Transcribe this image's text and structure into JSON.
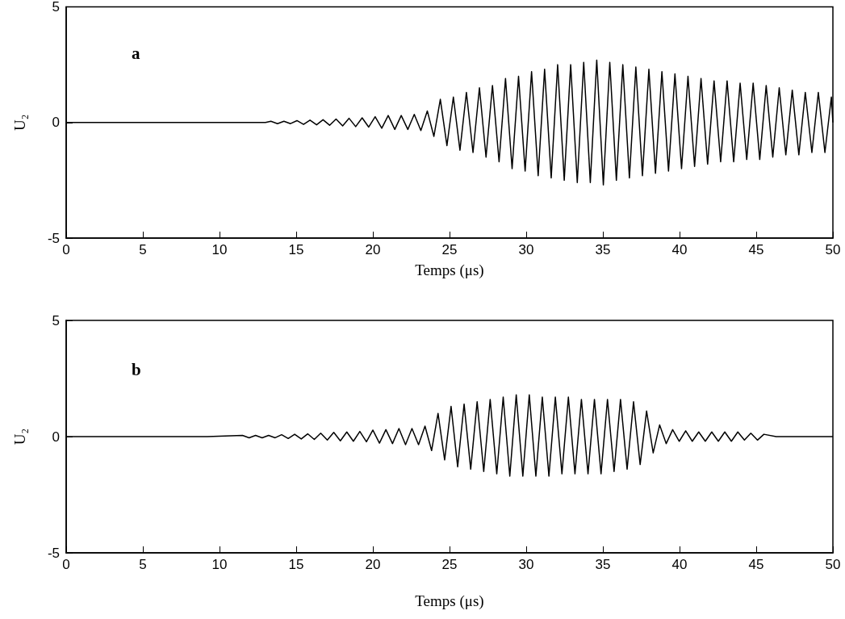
{
  "chart_data": [
    {
      "type": "line",
      "xlabel": "Temps (μs)",
      "ylabel": "U₂",
      "annotations": [
        "a"
      ],
      "xlim": [
        0,
        50
      ],
      "ylim": [
        -5,
        5
      ],
      "xticks": [
        0,
        5,
        10,
        15,
        20,
        25,
        30,
        35,
        40,
        45,
        50
      ],
      "yticks": [
        -5,
        0,
        5
      ],
      "grid": false,
      "marker": "none",
      "line_style": "solid",
      "series": [
        {
          "color": "#000000",
          "x": [
            0,
            13,
            13.35,
            13.78,
            14.2,
            14.63,
            15.05,
            15.48,
            15.9,
            16.33,
            16.75,
            17.18,
            17.6,
            18.03,
            18.45,
            18.88,
            19.3,
            19.73,
            20.15,
            20.58,
            21.0,
            21.43,
            21.85,
            22.28,
            22.7,
            23.13,
            23.55,
            23.98,
            24.4,
            24.83,
            25.25,
            25.68,
            26.1,
            26.53,
            26.95,
            27.38,
            27.8,
            28.23,
            28.65,
            29.08,
            29.5,
            29.93,
            30.35,
            30.78,
            31.2,
            31.63,
            32.05,
            32.48,
            32.9,
            33.33,
            33.75,
            34.18,
            34.6,
            35.03,
            35.45,
            35.88,
            36.3,
            36.73,
            37.15,
            37.58,
            38.0,
            38.43,
            38.85,
            39.28,
            39.7,
            40.13,
            40.55,
            40.98,
            41.4,
            41.83,
            42.25,
            42.68,
            43.1,
            43.53,
            43.95,
            44.38,
            44.8,
            45.23,
            45.65,
            46.08,
            46.5,
            46.93,
            47.35,
            47.78,
            48.2,
            48.63,
            49.05,
            49.48,
            49.9,
            50
          ],
          "values": [
            0,
            0,
            0.05,
            -0.05,
            0.05,
            -0.05,
            0.08,
            -0.08,
            0.1,
            -0.1,
            0.12,
            -0.12,
            0.15,
            -0.15,
            0.18,
            -0.18,
            0.2,
            -0.2,
            0.25,
            -0.25,
            0.3,
            -0.3,
            0.3,
            -0.3,
            0.35,
            -0.35,
            0.5,
            -0.6,
            1.0,
            -1.0,
            1.1,
            -1.2,
            1.3,
            -1.3,
            1.5,
            -1.5,
            1.6,
            -1.7,
            1.9,
            -2.0,
            2.0,
            -2.1,
            2.2,
            -2.3,
            2.3,
            -2.4,
            2.5,
            -2.5,
            2.5,
            -2.6,
            2.6,
            -2.6,
            2.7,
            -2.7,
            2.6,
            -2.5,
            2.5,
            -2.4,
            2.4,
            -2.3,
            2.3,
            -2.2,
            2.2,
            -2.1,
            2.1,
            -2.0,
            2.0,
            -1.9,
            1.9,
            -1.8,
            1.8,
            -1.7,
            1.8,
            -1.7,
            1.7,
            -1.6,
            1.7,
            -1.6,
            1.6,
            -1.5,
            1.5,
            -1.4,
            1.4,
            -1.4,
            1.3,
            -1.3,
            1.3,
            -1.3,
            1.1,
            0
          ]
        }
      ]
    },
    {
      "type": "line",
      "xlabel": "Temps (μs)",
      "ylabel": "U₂",
      "annotations": [
        "b"
      ],
      "xlim": [
        0,
        50
      ],
      "ylim": [
        -5,
        5
      ],
      "xticks": [
        0,
        5,
        10,
        15,
        20,
        25,
        30,
        35,
        40,
        45,
        50
      ],
      "yticks": [
        -5,
        0,
        5
      ],
      "grid": false,
      "marker": "none",
      "line_style": "solid",
      "series": [
        {
          "color": "#000000",
          "x": [
            0,
            9.2,
            11.5,
            11.93,
            12.35,
            12.78,
            13.2,
            13.63,
            14.05,
            14.48,
            14.9,
            15.33,
            15.75,
            16.18,
            16.6,
            17.03,
            17.45,
            17.88,
            18.3,
            18.73,
            19.15,
            19.58,
            20.0,
            20.43,
            20.85,
            21.28,
            21.7,
            22.13,
            22.55,
            22.98,
            23.4,
            23.83,
            24.25,
            24.68,
            25.1,
            25.53,
            25.95,
            26.38,
            26.8,
            27.23,
            27.65,
            28.08,
            28.5,
            28.93,
            29.35,
            29.78,
            30.2,
            30.63,
            31.05,
            31.48,
            31.9,
            32.33,
            32.75,
            33.18,
            33.6,
            34.03,
            34.45,
            34.88,
            35.3,
            35.73,
            36.15,
            36.58,
            37.0,
            37.43,
            37.85,
            38.28,
            38.7,
            39.13,
            39.55,
            39.98,
            40.4,
            40.83,
            41.25,
            41.68,
            42.1,
            42.53,
            42.95,
            43.38,
            43.8,
            44.23,
            44.65,
            45.08,
            45.5,
            46.3,
            50
          ],
          "values": [
            0,
            0,
            0.05,
            -0.05,
            0.05,
            -0.05,
            0.05,
            -0.05,
            0.08,
            -0.08,
            0.1,
            -0.1,
            0.12,
            -0.12,
            0.15,
            -0.15,
            0.18,
            -0.18,
            0.2,
            -0.2,
            0.22,
            -0.22,
            0.28,
            -0.28,
            0.3,
            -0.3,
            0.35,
            -0.35,
            0.35,
            -0.35,
            0.45,
            -0.6,
            1.0,
            -1.0,
            1.3,
            -1.3,
            1.4,
            -1.4,
            1.5,
            -1.5,
            1.6,
            -1.6,
            1.7,
            -1.7,
            1.8,
            -1.7,
            1.8,
            -1.7,
            1.7,
            -1.7,
            1.7,
            -1.6,
            1.7,
            -1.6,
            1.6,
            -1.6,
            1.6,
            -1.6,
            1.6,
            -1.5,
            1.6,
            -1.4,
            1.5,
            -1.2,
            1.1,
            -0.7,
            0.5,
            -0.3,
            0.3,
            -0.2,
            0.25,
            -0.2,
            0.2,
            -0.2,
            0.2,
            -0.2,
            0.2,
            -0.2,
            0.2,
            -0.15,
            0.15,
            -0.15,
            0.1,
            0,
            0
          ]
        }
      ]
    }
  ]
}
